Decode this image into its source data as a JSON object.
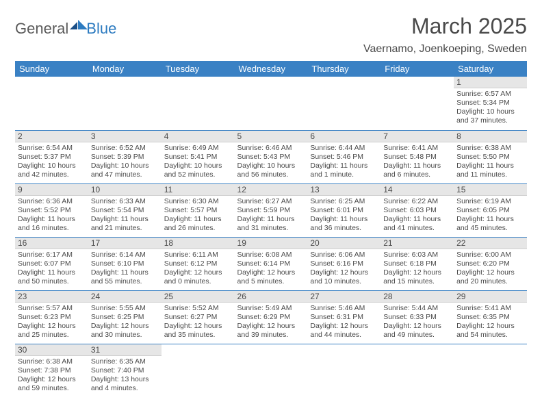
{
  "brand": {
    "part1": "General",
    "part2": "Blue"
  },
  "title": "March 2025",
  "location": "Vaernamo, Joenkoeping, Sweden",
  "colors": {
    "header_bg": "#3a81c4",
    "header_text": "#ffffff",
    "daynum_bg": "#e6e6e6",
    "border": "#3a81c4",
    "text": "#4a4a4a",
    "brand_accent": "#2d7bc0"
  },
  "weekdays": [
    "Sunday",
    "Monday",
    "Tuesday",
    "Wednesday",
    "Thursday",
    "Friday",
    "Saturday"
  ],
  "weeks": [
    [
      {
        "n": "",
        "sr": "",
        "ss": "",
        "dl": ""
      },
      {
        "n": "",
        "sr": "",
        "ss": "",
        "dl": ""
      },
      {
        "n": "",
        "sr": "",
        "ss": "",
        "dl": ""
      },
      {
        "n": "",
        "sr": "",
        "ss": "",
        "dl": ""
      },
      {
        "n": "",
        "sr": "",
        "ss": "",
        "dl": ""
      },
      {
        "n": "",
        "sr": "",
        "ss": "",
        "dl": ""
      },
      {
        "n": "1",
        "sr": "Sunrise: 6:57 AM",
        "ss": "Sunset: 5:34 PM",
        "dl": "Daylight: 10 hours and 37 minutes."
      }
    ],
    [
      {
        "n": "2",
        "sr": "Sunrise: 6:54 AM",
        "ss": "Sunset: 5:37 PM",
        "dl": "Daylight: 10 hours and 42 minutes."
      },
      {
        "n": "3",
        "sr": "Sunrise: 6:52 AM",
        "ss": "Sunset: 5:39 PM",
        "dl": "Daylight: 10 hours and 47 minutes."
      },
      {
        "n": "4",
        "sr": "Sunrise: 6:49 AM",
        "ss": "Sunset: 5:41 PM",
        "dl": "Daylight: 10 hours and 52 minutes."
      },
      {
        "n": "5",
        "sr": "Sunrise: 6:46 AM",
        "ss": "Sunset: 5:43 PM",
        "dl": "Daylight: 10 hours and 56 minutes."
      },
      {
        "n": "6",
        "sr": "Sunrise: 6:44 AM",
        "ss": "Sunset: 5:46 PM",
        "dl": "Daylight: 11 hours and 1 minute."
      },
      {
        "n": "7",
        "sr": "Sunrise: 6:41 AM",
        "ss": "Sunset: 5:48 PM",
        "dl": "Daylight: 11 hours and 6 minutes."
      },
      {
        "n": "8",
        "sr": "Sunrise: 6:38 AM",
        "ss": "Sunset: 5:50 PM",
        "dl": "Daylight: 11 hours and 11 minutes."
      }
    ],
    [
      {
        "n": "9",
        "sr": "Sunrise: 6:36 AM",
        "ss": "Sunset: 5:52 PM",
        "dl": "Daylight: 11 hours and 16 minutes."
      },
      {
        "n": "10",
        "sr": "Sunrise: 6:33 AM",
        "ss": "Sunset: 5:54 PM",
        "dl": "Daylight: 11 hours and 21 minutes."
      },
      {
        "n": "11",
        "sr": "Sunrise: 6:30 AM",
        "ss": "Sunset: 5:57 PM",
        "dl": "Daylight: 11 hours and 26 minutes."
      },
      {
        "n": "12",
        "sr": "Sunrise: 6:27 AM",
        "ss": "Sunset: 5:59 PM",
        "dl": "Daylight: 11 hours and 31 minutes."
      },
      {
        "n": "13",
        "sr": "Sunrise: 6:25 AM",
        "ss": "Sunset: 6:01 PM",
        "dl": "Daylight: 11 hours and 36 minutes."
      },
      {
        "n": "14",
        "sr": "Sunrise: 6:22 AM",
        "ss": "Sunset: 6:03 PM",
        "dl": "Daylight: 11 hours and 41 minutes."
      },
      {
        "n": "15",
        "sr": "Sunrise: 6:19 AM",
        "ss": "Sunset: 6:05 PM",
        "dl": "Daylight: 11 hours and 45 minutes."
      }
    ],
    [
      {
        "n": "16",
        "sr": "Sunrise: 6:17 AM",
        "ss": "Sunset: 6:07 PM",
        "dl": "Daylight: 11 hours and 50 minutes."
      },
      {
        "n": "17",
        "sr": "Sunrise: 6:14 AM",
        "ss": "Sunset: 6:10 PM",
        "dl": "Daylight: 11 hours and 55 minutes."
      },
      {
        "n": "18",
        "sr": "Sunrise: 6:11 AM",
        "ss": "Sunset: 6:12 PM",
        "dl": "Daylight: 12 hours and 0 minutes."
      },
      {
        "n": "19",
        "sr": "Sunrise: 6:08 AM",
        "ss": "Sunset: 6:14 PM",
        "dl": "Daylight: 12 hours and 5 minutes."
      },
      {
        "n": "20",
        "sr": "Sunrise: 6:06 AM",
        "ss": "Sunset: 6:16 PM",
        "dl": "Daylight: 12 hours and 10 minutes."
      },
      {
        "n": "21",
        "sr": "Sunrise: 6:03 AM",
        "ss": "Sunset: 6:18 PM",
        "dl": "Daylight: 12 hours and 15 minutes."
      },
      {
        "n": "22",
        "sr": "Sunrise: 6:00 AM",
        "ss": "Sunset: 6:20 PM",
        "dl": "Daylight: 12 hours and 20 minutes."
      }
    ],
    [
      {
        "n": "23",
        "sr": "Sunrise: 5:57 AM",
        "ss": "Sunset: 6:23 PM",
        "dl": "Daylight: 12 hours and 25 minutes."
      },
      {
        "n": "24",
        "sr": "Sunrise: 5:55 AM",
        "ss": "Sunset: 6:25 PM",
        "dl": "Daylight: 12 hours and 30 minutes."
      },
      {
        "n": "25",
        "sr": "Sunrise: 5:52 AM",
        "ss": "Sunset: 6:27 PM",
        "dl": "Daylight: 12 hours and 35 minutes."
      },
      {
        "n": "26",
        "sr": "Sunrise: 5:49 AM",
        "ss": "Sunset: 6:29 PM",
        "dl": "Daylight: 12 hours and 39 minutes."
      },
      {
        "n": "27",
        "sr": "Sunrise: 5:46 AM",
        "ss": "Sunset: 6:31 PM",
        "dl": "Daylight: 12 hours and 44 minutes."
      },
      {
        "n": "28",
        "sr": "Sunrise: 5:44 AM",
        "ss": "Sunset: 6:33 PM",
        "dl": "Daylight: 12 hours and 49 minutes."
      },
      {
        "n": "29",
        "sr": "Sunrise: 5:41 AM",
        "ss": "Sunset: 6:35 PM",
        "dl": "Daylight: 12 hours and 54 minutes."
      }
    ],
    [
      {
        "n": "30",
        "sr": "Sunrise: 6:38 AM",
        "ss": "Sunset: 7:38 PM",
        "dl": "Daylight: 12 hours and 59 minutes."
      },
      {
        "n": "31",
        "sr": "Sunrise: 6:35 AM",
        "ss": "Sunset: 7:40 PM",
        "dl": "Daylight: 13 hours and 4 minutes."
      },
      {
        "n": "",
        "sr": "",
        "ss": "",
        "dl": ""
      },
      {
        "n": "",
        "sr": "",
        "ss": "",
        "dl": ""
      },
      {
        "n": "",
        "sr": "",
        "ss": "",
        "dl": ""
      },
      {
        "n": "",
        "sr": "",
        "ss": "",
        "dl": ""
      },
      {
        "n": "",
        "sr": "",
        "ss": "",
        "dl": ""
      }
    ]
  ]
}
